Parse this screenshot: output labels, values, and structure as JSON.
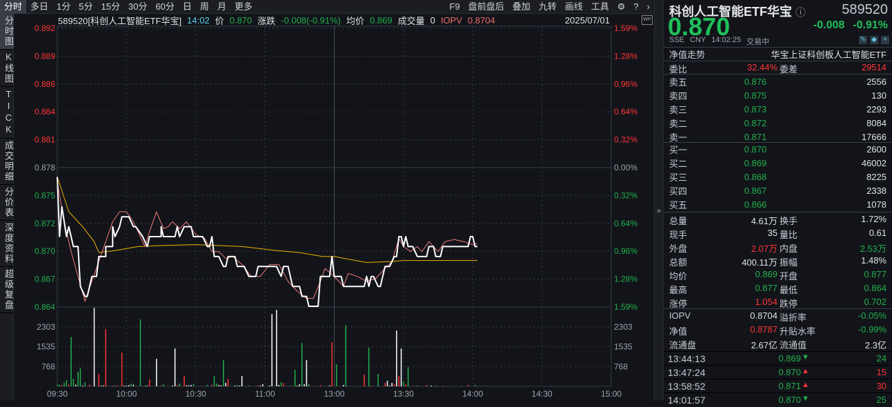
{
  "toolbar": {
    "tabs": [
      "分时",
      "多日",
      "1分",
      "5分",
      "15分",
      "30分",
      "60分",
      "日",
      "周",
      "月",
      "更多"
    ],
    "right": [
      "F9",
      "盘前盘后",
      "叠加",
      "九转",
      "画线",
      "工具"
    ],
    "icons": [
      "gear-icon",
      "help-icon",
      "chevron-right-icon"
    ]
  },
  "sidebar": [
    "分时图",
    "K线图",
    "TICK",
    "成交明细",
    "分价表",
    "深度资料",
    "超级复盘"
  ],
  "info": {
    "code_name": "589520[科创人工智能ETF华宝]",
    "time": "14:02",
    "price_label": "价",
    "price": "0.870",
    "chg_label": "涨跌",
    "chg": "-0.008(-0.91%)",
    "avg_label": "均价",
    "avg": "0.869",
    "vol_label": "成交量",
    "vol": "0",
    "iopv_label": "IOPV",
    "iopv": "0.8704",
    "date": "2025/07/01",
    "wp": "WP"
  },
  "header": {
    "name": "科创人工智能ETF华宝",
    "code": "589520",
    "price": "0.870",
    "change": "-0.008",
    "change_pct": "-0.91%",
    "exchange": "SSE",
    "currency": "CNY",
    "time": "14:02:25",
    "status": "交易中",
    "nav_trend": "净值走势",
    "fund_full": "华宝上证科创板人工智能ETF"
  },
  "ratio": {
    "wb_label": "委比",
    "wb": "32.44%",
    "wc_label": "委差",
    "wc": "29514"
  },
  "asks": [
    {
      "label": "卖五",
      "price": "0.876",
      "vol": "2556"
    },
    {
      "label": "卖四",
      "price": "0.875",
      "vol": "130"
    },
    {
      "label": "卖三",
      "price": "0.873",
      "vol": "2293"
    },
    {
      "label": "卖二",
      "price": "0.872",
      "vol": "8084"
    },
    {
      "label": "卖一",
      "price": "0.871",
      "vol": "17666"
    }
  ],
  "bids": [
    {
      "label": "买一",
      "price": "0.870",
      "vol": "2600"
    },
    {
      "label": "买二",
      "price": "0.869",
      "vol": "46002"
    },
    {
      "label": "买三",
      "price": "0.868",
      "vol": "8225"
    },
    {
      "label": "买四",
      "price": "0.867",
      "vol": "2338"
    },
    {
      "label": "买五",
      "price": "0.866",
      "vol": "1078"
    }
  ],
  "stats": [
    {
      "l1": "总量",
      "v1": "4.61万",
      "c1": "w",
      "l2": "换手",
      "v2": "1.72%",
      "c2": "w"
    },
    {
      "l1": "现手",
      "v1": "35",
      "c1": "w",
      "l2": "量比",
      "v2": "0.61",
      "c2": "w"
    },
    {
      "l1": "外盘",
      "v1": "2.07万",
      "c1": "r",
      "l2": "内盘",
      "v2": "2.53万",
      "c2": "g"
    },
    {
      "l1": "总额",
      "v1": "400.11万",
      "c1": "w",
      "l2": "振幅",
      "v2": "1.48%",
      "c2": "w"
    },
    {
      "l1": "均价",
      "v1": "0.869",
      "c1": "g",
      "l2": "开盘",
      "v2": "0.877",
      "c2": "g"
    },
    {
      "l1": "最高",
      "v1": "0.877",
      "c1": "g",
      "l2": "最低",
      "v2": "0.864",
      "c2": "g"
    },
    {
      "l1": "涨停",
      "v1": "1.054",
      "c1": "r",
      "l2": "跌停",
      "v2": "0.702",
      "c2": "g"
    }
  ],
  "fund": [
    {
      "l1": "IOPV",
      "v1": "0.8704",
      "c1": "w",
      "l2": "溢折率",
      "v2": "-0.05%",
      "c2": "g"
    },
    {
      "l1": "净值",
      "v1": "0.8787",
      "c1": "r",
      "l2": "升贴水率",
      "v2": "-0.99%",
      "c2": "g"
    },
    {
      "l1": "流通盘",
      "v1": "2.67亿",
      "c1": "w",
      "l2": "流通值",
      "v2": "2.3亿",
      "c2": "w"
    }
  ],
  "ticks": [
    {
      "time": "13:44:13",
      "price": "0.869",
      "dir": "down",
      "vol": "24",
      "c": "g"
    },
    {
      "time": "13:47:24",
      "price": "0.870",
      "dir": "up",
      "vol": "15",
      "c": "r"
    },
    {
      "time": "13:58:52",
      "price": "0.871",
      "dir": "up",
      "vol": "30",
      "c": "r"
    },
    {
      "time": "14:01:57",
      "price": "0.870",
      "dir": "down",
      "vol": "25",
      "c": "g"
    }
  ],
  "colors": {
    "up": "#ff3535",
    "down": "#22b14c",
    "price_line": "#ffffff",
    "avg_line": "#f0b400",
    "iopv_line": "#f07a7a"
  },
  "chart_data": {
    "type": "line",
    "price_ticks": [
      {
        "v": "0.892",
        "p": "1.59%",
        "c": "r"
      },
      {
        "v": "0.889",
        "p": "1.28%",
        "c": "r"
      },
      {
        "v": "0.886",
        "p": "0.96%",
        "c": "r"
      },
      {
        "v": "0.884",
        "p": "0.64%",
        "c": "r"
      },
      {
        "v": "0.881",
        "p": "0.32%",
        "c": "r"
      },
      {
        "v": "0.878",
        "p": "0.00%",
        "c": "n"
      },
      {
        "v": "0.875",
        "p": "0.32%",
        "c": "g"
      },
      {
        "v": "0.872",
        "p": "0.64%",
        "c": "g"
      },
      {
        "v": "0.870",
        "p": "0.96%",
        "c": "g"
      },
      {
        "v": "0.867",
        "p": "1.28%",
        "c": "g"
      },
      {
        "v": "0.864",
        "p": "1.59%",
        "c": "g"
      }
    ],
    "ylim": [
      0.864,
      0.892
    ],
    "prev_close": 0.878,
    "vol_ticks": [
      "2303",
      "1535",
      "768"
    ],
    "vol_max": 3077,
    "time_labels": [
      "09:30",
      "10:00",
      "10:30",
      "11:00",
      "13:00",
      "13:30",
      "14:00",
      "14:30",
      "15:00"
    ],
    "x_unit": "minutes since open (0-240)",
    "price": [
      [
        0,
        0.877
      ],
      [
        1,
        0.871
      ],
      [
        2,
        0.874
      ],
      [
        4,
        0.871
      ],
      [
        5,
        0.872
      ],
      [
        7,
        0.87
      ],
      [
        9,
        0.87
      ],
      [
        10,
        0.866
      ],
      [
        12,
        0.865
      ],
      [
        13,
        0.865
      ],
      [
        15,
        0.867
      ],
      [
        17,
        0.867
      ],
      [
        18,
        0.869
      ],
      [
        21,
        0.869
      ],
      [
        21,
        0.87
      ],
      [
        24,
        0.87
      ],
      [
        24,
        0.872
      ],
      [
        25,
        0.871
      ],
      [
        27,
        0.872
      ],
      [
        28,
        0.873
      ],
      [
        31,
        0.873
      ],
      [
        33,
        0.872
      ],
      [
        34,
        0.872
      ],
      [
        37,
        0.871
      ],
      [
        39,
        0.87
      ],
      [
        40,
        0.871
      ],
      [
        45,
        0.871
      ],
      [
        45,
        0.872
      ],
      [
        46,
        0.871
      ],
      [
        51,
        0.871
      ],
      [
        52,
        0.872
      ],
      [
        53,
        0.871
      ],
      [
        55,
        0.872
      ],
      [
        58,
        0.872
      ],
      [
        59,
        0.871
      ],
      [
        63,
        0.871
      ],
      [
        65,
        0.87
      ],
      [
        66,
        0.87
      ],
      [
        67,
        0.871
      ],
      [
        68,
        0.869
      ],
      [
        70,
        0.869
      ],
      [
        72,
        0.868
      ],
      [
        73,
        0.868
      ],
      [
        74,
        0.869
      ],
      [
        77,
        0.869
      ],
      [
        78,
        0.868
      ],
      [
        81,
        0.868
      ],
      [
        83,
        0.867
      ],
      [
        86,
        0.867
      ],
      [
        87,
        0.868
      ],
      [
        95,
        0.868
      ],
      [
        97,
        0.867
      ],
      [
        98,
        0.868
      ],
      [
        100,
        0.868
      ],
      [
        101,
        0.867
      ],
      [
        102,
        0.866
      ],
      [
        105,
        0.866
      ],
      [
        106,
        0.865
      ],
      [
        108,
        0.865
      ],
      [
        109,
        0.864
      ],
      [
        113,
        0.864
      ],
      [
        114,
        0.867
      ],
      [
        118,
        0.867
      ],
      [
        119,
        0.869
      ],
      [
        120,
        0.867
      ],
      [
        123,
        0.867
      ],
      [
        124,
        0.866
      ],
      [
        133,
        0.866
      ],
      [
        134,
        0.867
      ],
      [
        135,
        0.866
      ],
      [
        136,
        0.867
      ],
      [
        137,
        0.867
      ],
      [
        139,
        0.866
      ],
      [
        140,
        0.866
      ],
      [
        142,
        0.868
      ],
      [
        144,
        0.868
      ],
      [
        146,
        0.869
      ],
      [
        147,
        0.869
      ],
      [
        148,
        0.871
      ],
      [
        149,
        0.871
      ],
      [
        150,
        0.87
      ],
      [
        151,
        0.871
      ],
      [
        152,
        0.87
      ],
      [
        154,
        0.87
      ],
      [
        156,
        0.869
      ],
      [
        160,
        0.869
      ],
      [
        161,
        0.87
      ],
      [
        163,
        0.87
      ],
      [
        164,
        0.869
      ],
      [
        166,
        0.869
      ],
      [
        167,
        0.87
      ],
      [
        178,
        0.87
      ],
      [
        179,
        0.871
      ],
      [
        180,
        0.871
      ],
      [
        181,
        0.87
      ],
      [
        182,
        0.87
      ]
    ],
    "iopv": [
      [
        0,
        0.8765
      ],
      [
        3,
        0.8725
      ],
      [
        6,
        0.8695
      ],
      [
        9,
        0.867
      ],
      [
        12,
        0.8645
      ],
      [
        15,
        0.8665
      ],
      [
        18,
        0.8685
      ],
      [
        21,
        0.8705
      ],
      [
        24,
        0.8725
      ],
      [
        27,
        0.8735
      ],
      [
        30,
        0.8735
      ],
      [
        33,
        0.8725
      ],
      [
        36,
        0.871
      ],
      [
        38,
        0.87
      ],
      [
        40,
        0.8715
      ],
      [
        43,
        0.8735
      ],
      [
        46,
        0.8718
      ],
      [
        48,
        0.872
      ],
      [
        50,
        0.8725
      ],
      [
        53,
        0.8718
      ],
      [
        56,
        0.8725
      ],
      [
        60,
        0.8712
      ],
      [
        64,
        0.8708
      ],
      [
        67,
        0.8695
      ],
      [
        70,
        0.8695
      ],
      [
        73,
        0.8688
      ],
      [
        76,
        0.869
      ],
      [
        80,
        0.8682
      ],
      [
        84,
        0.867
      ],
      [
        88,
        0.867
      ],
      [
        92,
        0.8682
      ],
      [
        96,
        0.8682
      ],
      [
        100,
        0.8665
      ],
      [
        104,
        0.8655
      ],
      [
        108,
        0.8648
      ],
      [
        111,
        0.8648
      ],
      [
        114,
        0.8665
      ],
      [
        116,
        0.8678
      ],
      [
        119,
        0.8672
      ],
      [
        122,
        0.8665
      ],
      [
        124,
        0.866
      ],
      [
        126,
        0.8673
      ],
      [
        130,
        0.867
      ],
      [
        134,
        0.8665
      ],
      [
        138,
        0.8668
      ],
      [
        142,
        0.8678
      ],
      [
        145,
        0.8685
      ],
      [
        148,
        0.8708
      ],
      [
        150,
        0.87
      ],
      [
        153,
        0.8695
      ],
      [
        156,
        0.87
      ],
      [
        158,
        0.8695
      ],
      [
        161,
        0.8705
      ],
      [
        165,
        0.8695
      ],
      [
        168,
        0.8705
      ],
      [
        172,
        0.8707
      ],
      [
        176,
        0.8705
      ],
      [
        180,
        0.8702
      ],
      [
        182,
        0.8703
      ]
    ],
    "avg": [
      [
        0,
        0.877
      ],
      [
        5,
        0.8735
      ],
      [
        11,
        0.872
      ],
      [
        16,
        0.8705
      ],
      [
        18,
        0.8694
      ],
      [
        25,
        0.8696
      ],
      [
        35,
        0.87
      ],
      [
        45,
        0.8701
      ],
      [
        60,
        0.8702
      ],
      [
        70,
        0.8701
      ],
      [
        80,
        0.87
      ],
      [
        95,
        0.8696
      ],
      [
        105,
        0.8694
      ],
      [
        115,
        0.869
      ],
      [
        120,
        0.869
      ],
      [
        134,
        0.8684
      ],
      [
        145,
        0.8685
      ],
      [
        150,
        0.8686
      ],
      [
        182,
        0.8686
      ]
    ],
    "volume": [
      [
        0,
        62,
        "g"
      ],
      [
        1,
        62,
        "g"
      ],
      [
        2,
        45,
        "r"
      ],
      [
        3,
        133,
        "g"
      ],
      [
        4,
        240,
        "g"
      ],
      [
        5,
        62,
        "r"
      ],
      [
        6,
        1913,
        "g"
      ],
      [
        7,
        294,
        "g"
      ],
      [
        8,
        62,
        "w"
      ],
      [
        9,
        560,
        "g"
      ],
      [
        10,
        694,
        "g"
      ],
      [
        11,
        30,
        "w"
      ],
      [
        12,
        160,
        "g"
      ],
      [
        14,
        62,
        "r"
      ],
      [
        16,
        3044,
        "w"
      ],
      [
        18,
        480,
        "r"
      ],
      [
        19,
        30,
        "w"
      ],
      [
        20,
        30,
        "w"
      ],
      [
        21,
        2216,
        "r"
      ],
      [
        24,
        30,
        "r"
      ],
      [
        25,
        30,
        "g"
      ],
      [
        26,
        30,
        "r"
      ],
      [
        28,
        1308,
        "r"
      ],
      [
        29,
        30,
        "w"
      ],
      [
        30,
        30,
        "w"
      ],
      [
        31,
        45,
        "w"
      ],
      [
        32,
        107,
        "g"
      ],
      [
        33,
        62,
        "w"
      ],
      [
        36,
        2590,
        "g"
      ],
      [
        38,
        30,
        "g"
      ],
      [
        39,
        30,
        "w"
      ],
      [
        40,
        267,
        "r"
      ],
      [
        43,
        1068,
        "w"
      ],
      [
        45,
        30,
        "r"
      ],
      [
        46,
        80,
        "g"
      ],
      [
        50,
        30,
        "w"
      ],
      [
        51,
        1468,
        "w"
      ],
      [
        52,
        45,
        "r"
      ],
      [
        53,
        107,
        "g"
      ],
      [
        55,
        400,
        "r"
      ],
      [
        56,
        36,
        "w"
      ],
      [
        57,
        36,
        "w"
      ],
      [
        58,
        53,
        "w"
      ],
      [
        59,
        80,
        "g"
      ],
      [
        65,
        53,
        "g"
      ],
      [
        67,
        53,
        "r"
      ],
      [
        68,
        391,
        "g"
      ],
      [
        69,
        107,
        "g"
      ],
      [
        70,
        53,
        "w"
      ],
      [
        71,
        30,
        "w"
      ],
      [
        72,
        1015,
        "g"
      ],
      [
        73,
        133,
        "w"
      ],
      [
        74,
        294,
        "r"
      ],
      [
        77,
        30,
        "w"
      ],
      [
        78,
        53,
        "g"
      ],
      [
        79,
        30,
        "w"
      ],
      [
        80,
        400,
        "w"
      ],
      [
        83,
        30,
        "g"
      ],
      [
        87,
        30,
        "r"
      ],
      [
        88,
        30,
        "w"
      ],
      [
        89,
        80,
        "w"
      ],
      [
        92,
        30,
        "w"
      ],
      [
        93,
        2803,
        "w"
      ],
      [
        95,
        2964,
        "w"
      ],
      [
        96,
        53,
        "w"
      ],
      [
        97,
        160,
        "g"
      ],
      [
        98,
        125,
        "r"
      ],
      [
        101,
        30,
        "g"
      ],
      [
        103,
        640,
        "g"
      ],
      [
        104,
        30,
        "w"
      ],
      [
        105,
        80,
        "w"
      ],
      [
        106,
        1682,
        "g"
      ],
      [
        107,
        80,
        "w"
      ],
      [
        108,
        1015,
        "w"
      ],
      [
        109,
        80,
        "g"
      ],
      [
        114,
        53,
        "r"
      ],
      [
        118,
        30,
        "w"
      ],
      [
        119,
        1709,
        "r"
      ],
      [
        121,
        854,
        "g"
      ],
      [
        124,
        53,
        "w"
      ],
      [
        125,
        2376,
        "g"
      ],
      [
        133,
        454,
        "r"
      ],
      [
        135,
        1495,
        "g"
      ],
      [
        136,
        30,
        "r"
      ],
      [
        139,
        480,
        "g"
      ],
      [
        142,
        133,
        "r"
      ],
      [
        143,
        214,
        "w"
      ],
      [
        144,
        30,
        "w"
      ],
      [
        145,
        133,
        "w"
      ],
      [
        146,
        80,
        "r"
      ],
      [
        147,
        2163,
        "w"
      ],
      [
        148,
        400,
        "r"
      ],
      [
        149,
        1468,
        "w"
      ],
      [
        150,
        187,
        "g"
      ],
      [
        151,
        80,
        "r"
      ],
      [
        152,
        748,
        "g"
      ],
      [
        156,
        30,
        "g"
      ],
      [
        160,
        53,
        "r"
      ],
      [
        162,
        30,
        "w"
      ],
      [
        164,
        30,
        "g"
      ],
      [
        167,
        30,
        "r"
      ],
      [
        178,
        53,
        "r"
      ],
      [
        181,
        53,
        "g"
      ]
    ]
  }
}
